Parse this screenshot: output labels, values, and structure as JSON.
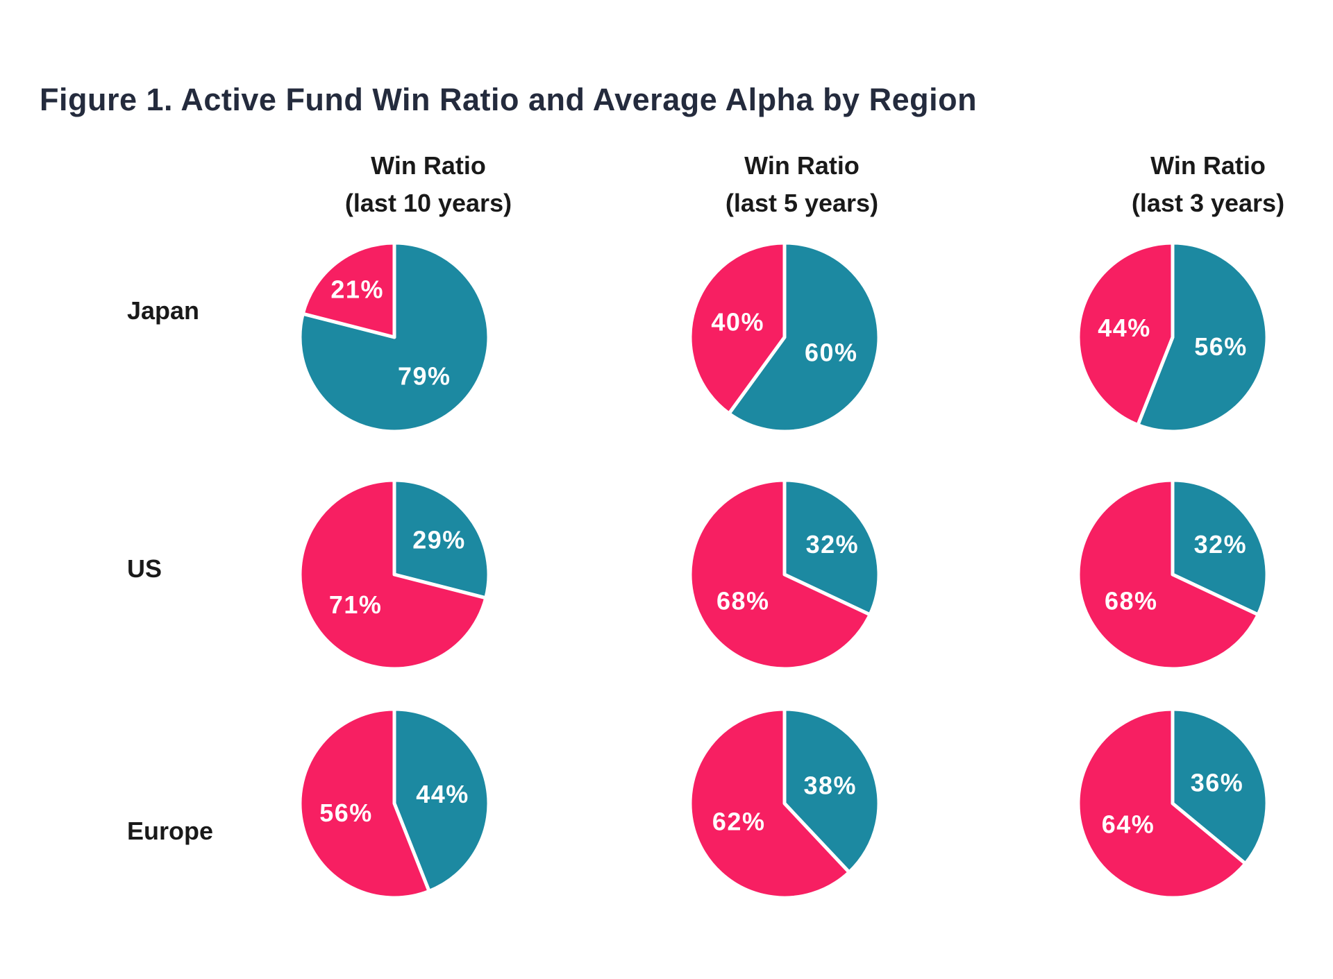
{
  "title": "Figure 1. Active Fund Win Ratio and Average Alpha by Region",
  "colors": {
    "pink_active": "#F71F62",
    "teal_passive": "#1C89A1",
    "title_text": "#242B3D",
    "label_text": "#191919",
    "slice_label_text": "#FFFFFF",
    "background": "#FFFFFF",
    "slice_separator": "#FFFFFF"
  },
  "chart_data": {
    "type": "pie",
    "layout": "3x3 grid of two-slice pie charts; teal slice starts at 12 o'clock sweeping clockwise, pink slice fills the remainder",
    "unit": "%",
    "title": "Figure 1. Active Fund Win Ratio and Average Alpha by Region",
    "columns": [
      {
        "title": "Win Ratio",
        "subtitle": "(last 10 years)"
      },
      {
        "title": "Win Ratio",
        "subtitle": "(last 5 years)"
      },
      {
        "title": "Win Ratio",
        "subtitle": "(last 3 years)"
      }
    ],
    "rows": [
      "Japan",
      "US",
      "Europe"
    ],
    "series": [
      {
        "name": "teal",
        "color": "#1C89A1"
      },
      {
        "name": "pink",
        "color": "#F71F62"
      }
    ],
    "pies": [
      [
        {
          "teal": 79,
          "pink": 21
        },
        {
          "teal": 60,
          "pink": 40
        },
        {
          "teal": 56,
          "pink": 44
        }
      ],
      [
        {
          "teal": 29,
          "pink": 71
        },
        {
          "teal": 32,
          "pink": 68
        },
        {
          "teal": 32,
          "pink": 68
        }
      ],
      [
        {
          "teal": 44,
          "pink": 56
        },
        {
          "teal": 38,
          "pink": 62
        },
        {
          "teal": 36,
          "pink": 64
        }
      ]
    ],
    "slice_labels_format": "value + '%' shown in white inside each slice"
  }
}
